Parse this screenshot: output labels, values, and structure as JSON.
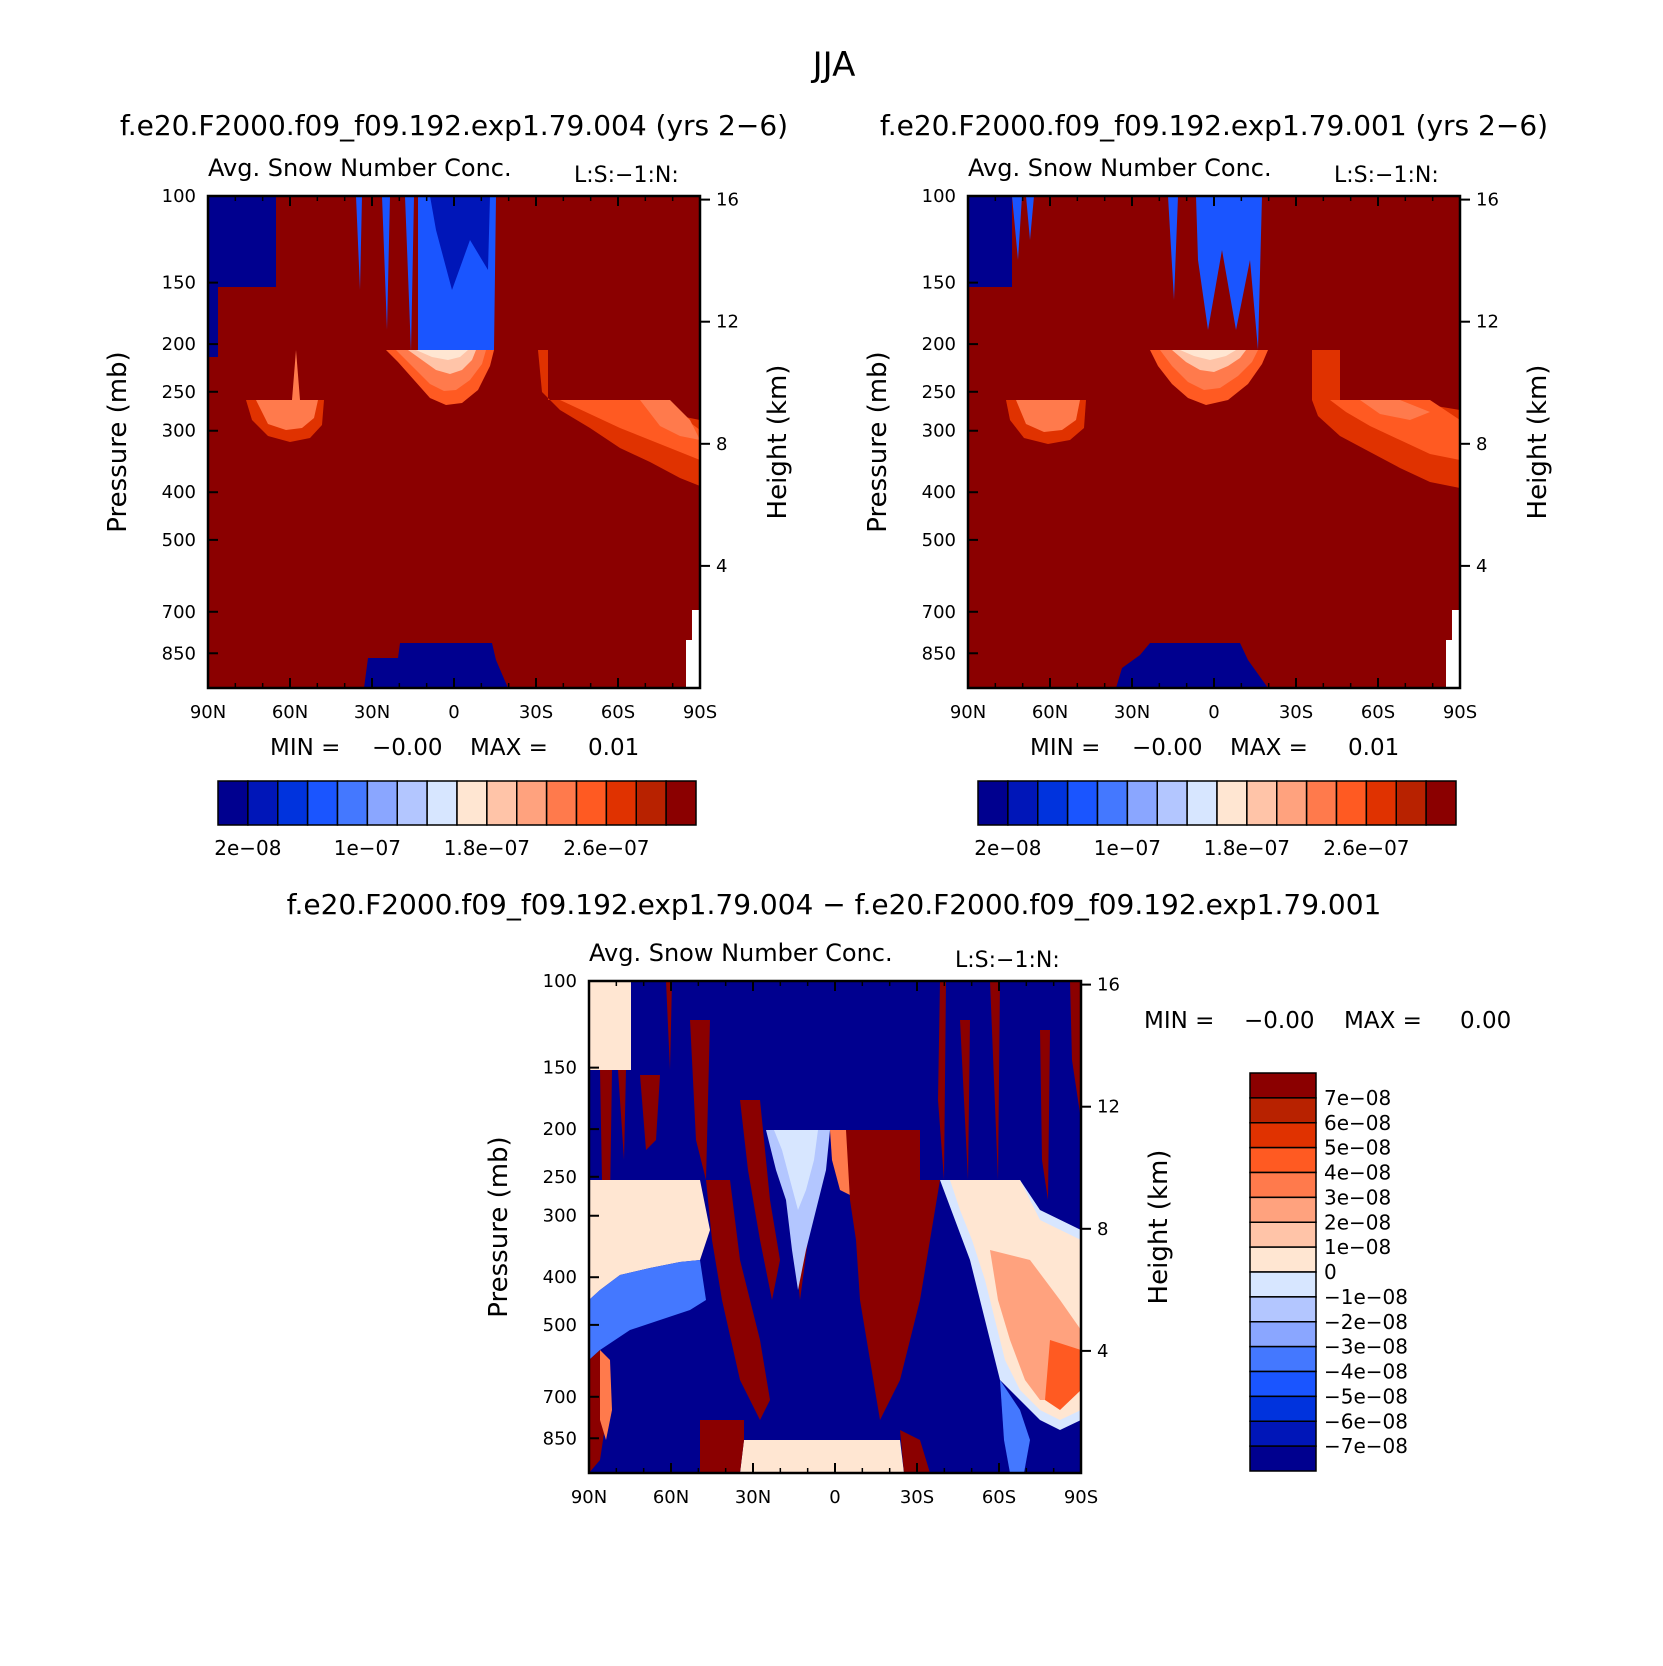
{
  "title": "JJA",
  "diff_title": "f.e20.F2000.f09_f09.192.exp1.79.004 − f.e20.F2000.f09_f09.192.exp1.79.001",
  "colors": {
    "abs": [
      "#00008f",
      "#0016b8",
      "#0033dd",
      "#1a55ff",
      "#4478ff",
      "#8aa6ff",
      "#b3c6ff",
      "#d7e6ff",
      "#ffe6d2",
      "#ffc4a8",
      "#ffa27e",
      "#ff7a4c",
      "#ff5a22",
      "#e03200",
      "#b82200",
      "#8b0000"
    ],
    "diff": [
      "#00008f",
      "#0016b8",
      "#0033dd",
      "#1a55ff",
      "#4478ff",
      "#8aa6ff",
      "#b3c6ff",
      "#d7e6ff",
      "#ffe6d2",
      "#ffc4a8",
      "#ffa27e",
      "#ff7a4c",
      "#ff5a22",
      "#e03200",
      "#b82200",
      "#8b0000"
    ]
  },
  "chart_data": [
    {
      "type": "heatmap",
      "case": "f.e20.F2000.f09_f09.192.exp1.79.004 (yrs 2−6)",
      "title": "Avg. Snow Number Conc.",
      "side_label": "L:S:−1:N:",
      "ylabel": "Pressure (mb)",
      "ylabel_right": "Height (km)",
      "x_ticks": [
        "90N",
        "60N",
        "30N",
        "0",
        "30S",
        "60S",
        "90S"
      ],
      "y_ticks": [
        "100",
        "150",
        "200",
        "250",
        "300",
        "400",
        "500",
        "700",
        "850"
      ],
      "y_ticks_right": [
        "16",
        "12",
        "8",
        "4"
      ],
      "stats": {
        "min_label": "MIN =",
        "min": "−0.00",
        "max_label": "MAX =",
        "max": "0.01"
      },
      "colorbar_labels": [
        "2e−08",
        "1e−07",
        "1.8e−07",
        "2.6e−07"
      ]
    },
    {
      "type": "heatmap",
      "case": "f.e20.F2000.f09_f09.192.exp1.79.001 (yrs 2−6)",
      "title": "Avg. Snow Number Conc.",
      "side_label": "L:S:−1:N:",
      "ylabel": "Pressure (mb)",
      "ylabel_right": "Height (km)",
      "x_ticks": [
        "90N",
        "60N",
        "30N",
        "0",
        "30S",
        "60S",
        "90S"
      ],
      "y_ticks": [
        "100",
        "150",
        "200",
        "250",
        "300",
        "400",
        "500",
        "700",
        "850"
      ],
      "y_ticks_right": [
        "16",
        "12",
        "8",
        "4"
      ],
      "stats": {
        "min_label": "MIN =",
        "min": "−0.00",
        "max_label": "MAX =",
        "max": "0.01"
      },
      "colorbar_labels": [
        "2e−08",
        "1e−07",
        "1.8e−07",
        "2.6e−07"
      ]
    },
    {
      "type": "heatmap",
      "title": "Avg. Snow Number Conc.",
      "side_label": "L:S:−1:N:",
      "ylabel": "Pressure (mb)",
      "ylabel_right": "Height (km)",
      "x_ticks": [
        "90N",
        "60N",
        "30N",
        "0",
        "30S",
        "60S",
        "90S"
      ],
      "y_ticks": [
        "100",
        "150",
        "200",
        "250",
        "300",
        "400",
        "500",
        "700",
        "850"
      ],
      "y_ticks_right": [
        "16",
        "12",
        "8",
        "4"
      ],
      "stats": {
        "min_label": "MIN =",
        "min": "−0.00",
        "max_label": "MAX =",
        "max": "0.00"
      },
      "colorbar_labels": [
        "7e−08",
        "6e−08",
        "5e−08",
        "4e−08",
        "3e−08",
        "2e−08",
        "1e−08",
        "0",
        "−1e−08",
        "−2e−08",
        "−3e−08",
        "−4e−08",
        "−5e−08",
        "−6e−08",
        "−7e−08"
      ]
    }
  ]
}
